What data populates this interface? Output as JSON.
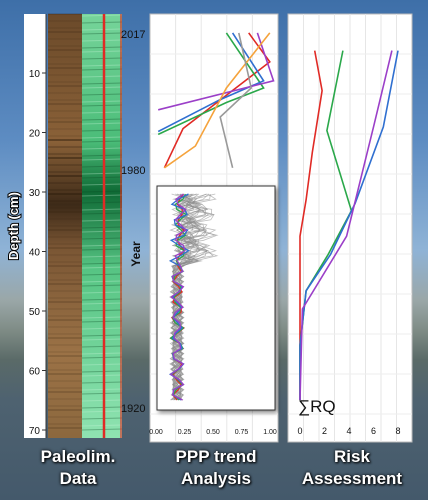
{
  "depth_axis": {
    "label": "Depth (cm)",
    "ticks": [
      "10",
      "20",
      "30",
      "40",
      "50",
      "60",
      "70"
    ]
  },
  "panels": {
    "paleo": {
      "title_line1": "Paleolim.",
      "title_line2": "Data"
    },
    "ppp": {
      "title_line1": "PPP trend",
      "title_line2": "Analysis"
    },
    "risk": {
      "title_line1": "Risk",
      "title_line2": "Assessment"
    }
  },
  "year_axis": {
    "label": "Year",
    "ticks": [
      "2017",
      "1980",
      "1920"
    ]
  },
  "inset_x_ticks": [
    "0.00",
    "0.25",
    "0.50",
    "0.75",
    "1.00"
  ],
  "risk_label": "∑RQ",
  "risk_x_ticks": [
    "0",
    "2",
    "4",
    "6",
    "8"
  ],
  "colors": {
    "red": "#e02a25",
    "green": "#2aa84a",
    "blue": "#2f6fd0",
    "purple": "#9b3fc8",
    "orange": "#f5a33c",
    "gray": "#999999"
  },
  "chart_data": [
    {
      "type": "line",
      "panel": "PPP trend (upper)",
      "x_range": [
        0,
        1
      ],
      "y_label": "Year",
      "series": [
        {
          "color": "#e02a25",
          "points": [
            [
              0.78,
              0.02
            ],
            [
              0.95,
              0.22
            ],
            [
              0.25,
              0.68
            ],
            [
              0.1,
              0.95
            ]
          ]
        },
        {
          "color": "#2aa84a",
          "points": [
            [
              0.6,
              0.02
            ],
            [
              0.9,
              0.4
            ],
            [
              0.6,
              0.5
            ],
            [
              0.05,
              0.72
            ]
          ]
        },
        {
          "color": "#2f6fd0",
          "points": [
            [
              0.65,
              0.02
            ],
            [
              0.9,
              0.35
            ],
            [
              0.55,
              0.48
            ],
            [
              0.05,
              0.7
            ]
          ]
        },
        {
          "color": "#9b3fc8",
          "points": [
            [
              0.85,
              0.02
            ],
            [
              0.98,
              0.35
            ],
            [
              0.05,
              0.55
            ]
          ]
        },
        {
          "color": "#f5a33c",
          "points": [
            [
              0.95,
              0.02
            ],
            [
              0.6,
              0.4
            ],
            [
              0.35,
              0.8
            ],
            [
              0.1,
              0.95
            ]
          ]
        },
        {
          "color": "#999999",
          "points": [
            [
              0.7,
              0.02
            ],
            [
              0.8,
              0.4
            ],
            [
              0.55,
              0.6
            ],
            [
              0.65,
              0.95
            ]
          ]
        }
      ]
    },
    {
      "type": "line",
      "panel": "Risk Assessment",
      "x_range": [
        0,
        8
      ],
      "series": [
        {
          "color": "#e02a25",
          "points": [
            [
              1.2,
              0.04
            ],
            [
              1.8,
              0.15
            ],
            [
              1.0,
              0.32
            ],
            [
              0.5,
              0.45
            ],
            [
              0.0,
              0.55
            ],
            [
              0.0,
              1.0
            ]
          ]
        },
        {
          "color": "#2aa84a",
          "points": [
            [
              3.5,
              0.04
            ],
            [
              2.2,
              0.26
            ],
            [
              4.2,
              0.48
            ],
            [
              2.3,
              0.6
            ],
            [
              0.5,
              0.7
            ],
            [
              0.0,
              0.85
            ],
            [
              0.0,
              1.0
            ]
          ]
        },
        {
          "color": "#2f6fd0",
          "points": [
            [
              8.0,
              0.04
            ],
            [
              6.8,
              0.25
            ],
            [
              4.5,
              0.46
            ],
            [
              2.5,
              0.6
            ],
            [
              0.5,
              0.7
            ],
            [
              0.0,
              0.85
            ],
            [
              0.0,
              1.0
            ]
          ]
        },
        {
          "color": "#9b3fc8",
          "points": [
            [
              7.5,
              0.04
            ],
            [
              6.0,
              0.25
            ],
            [
              3.8,
              0.55
            ],
            [
              0.2,
              0.75
            ],
            [
              0.0,
              1.0
            ]
          ]
        }
      ]
    }
  ]
}
